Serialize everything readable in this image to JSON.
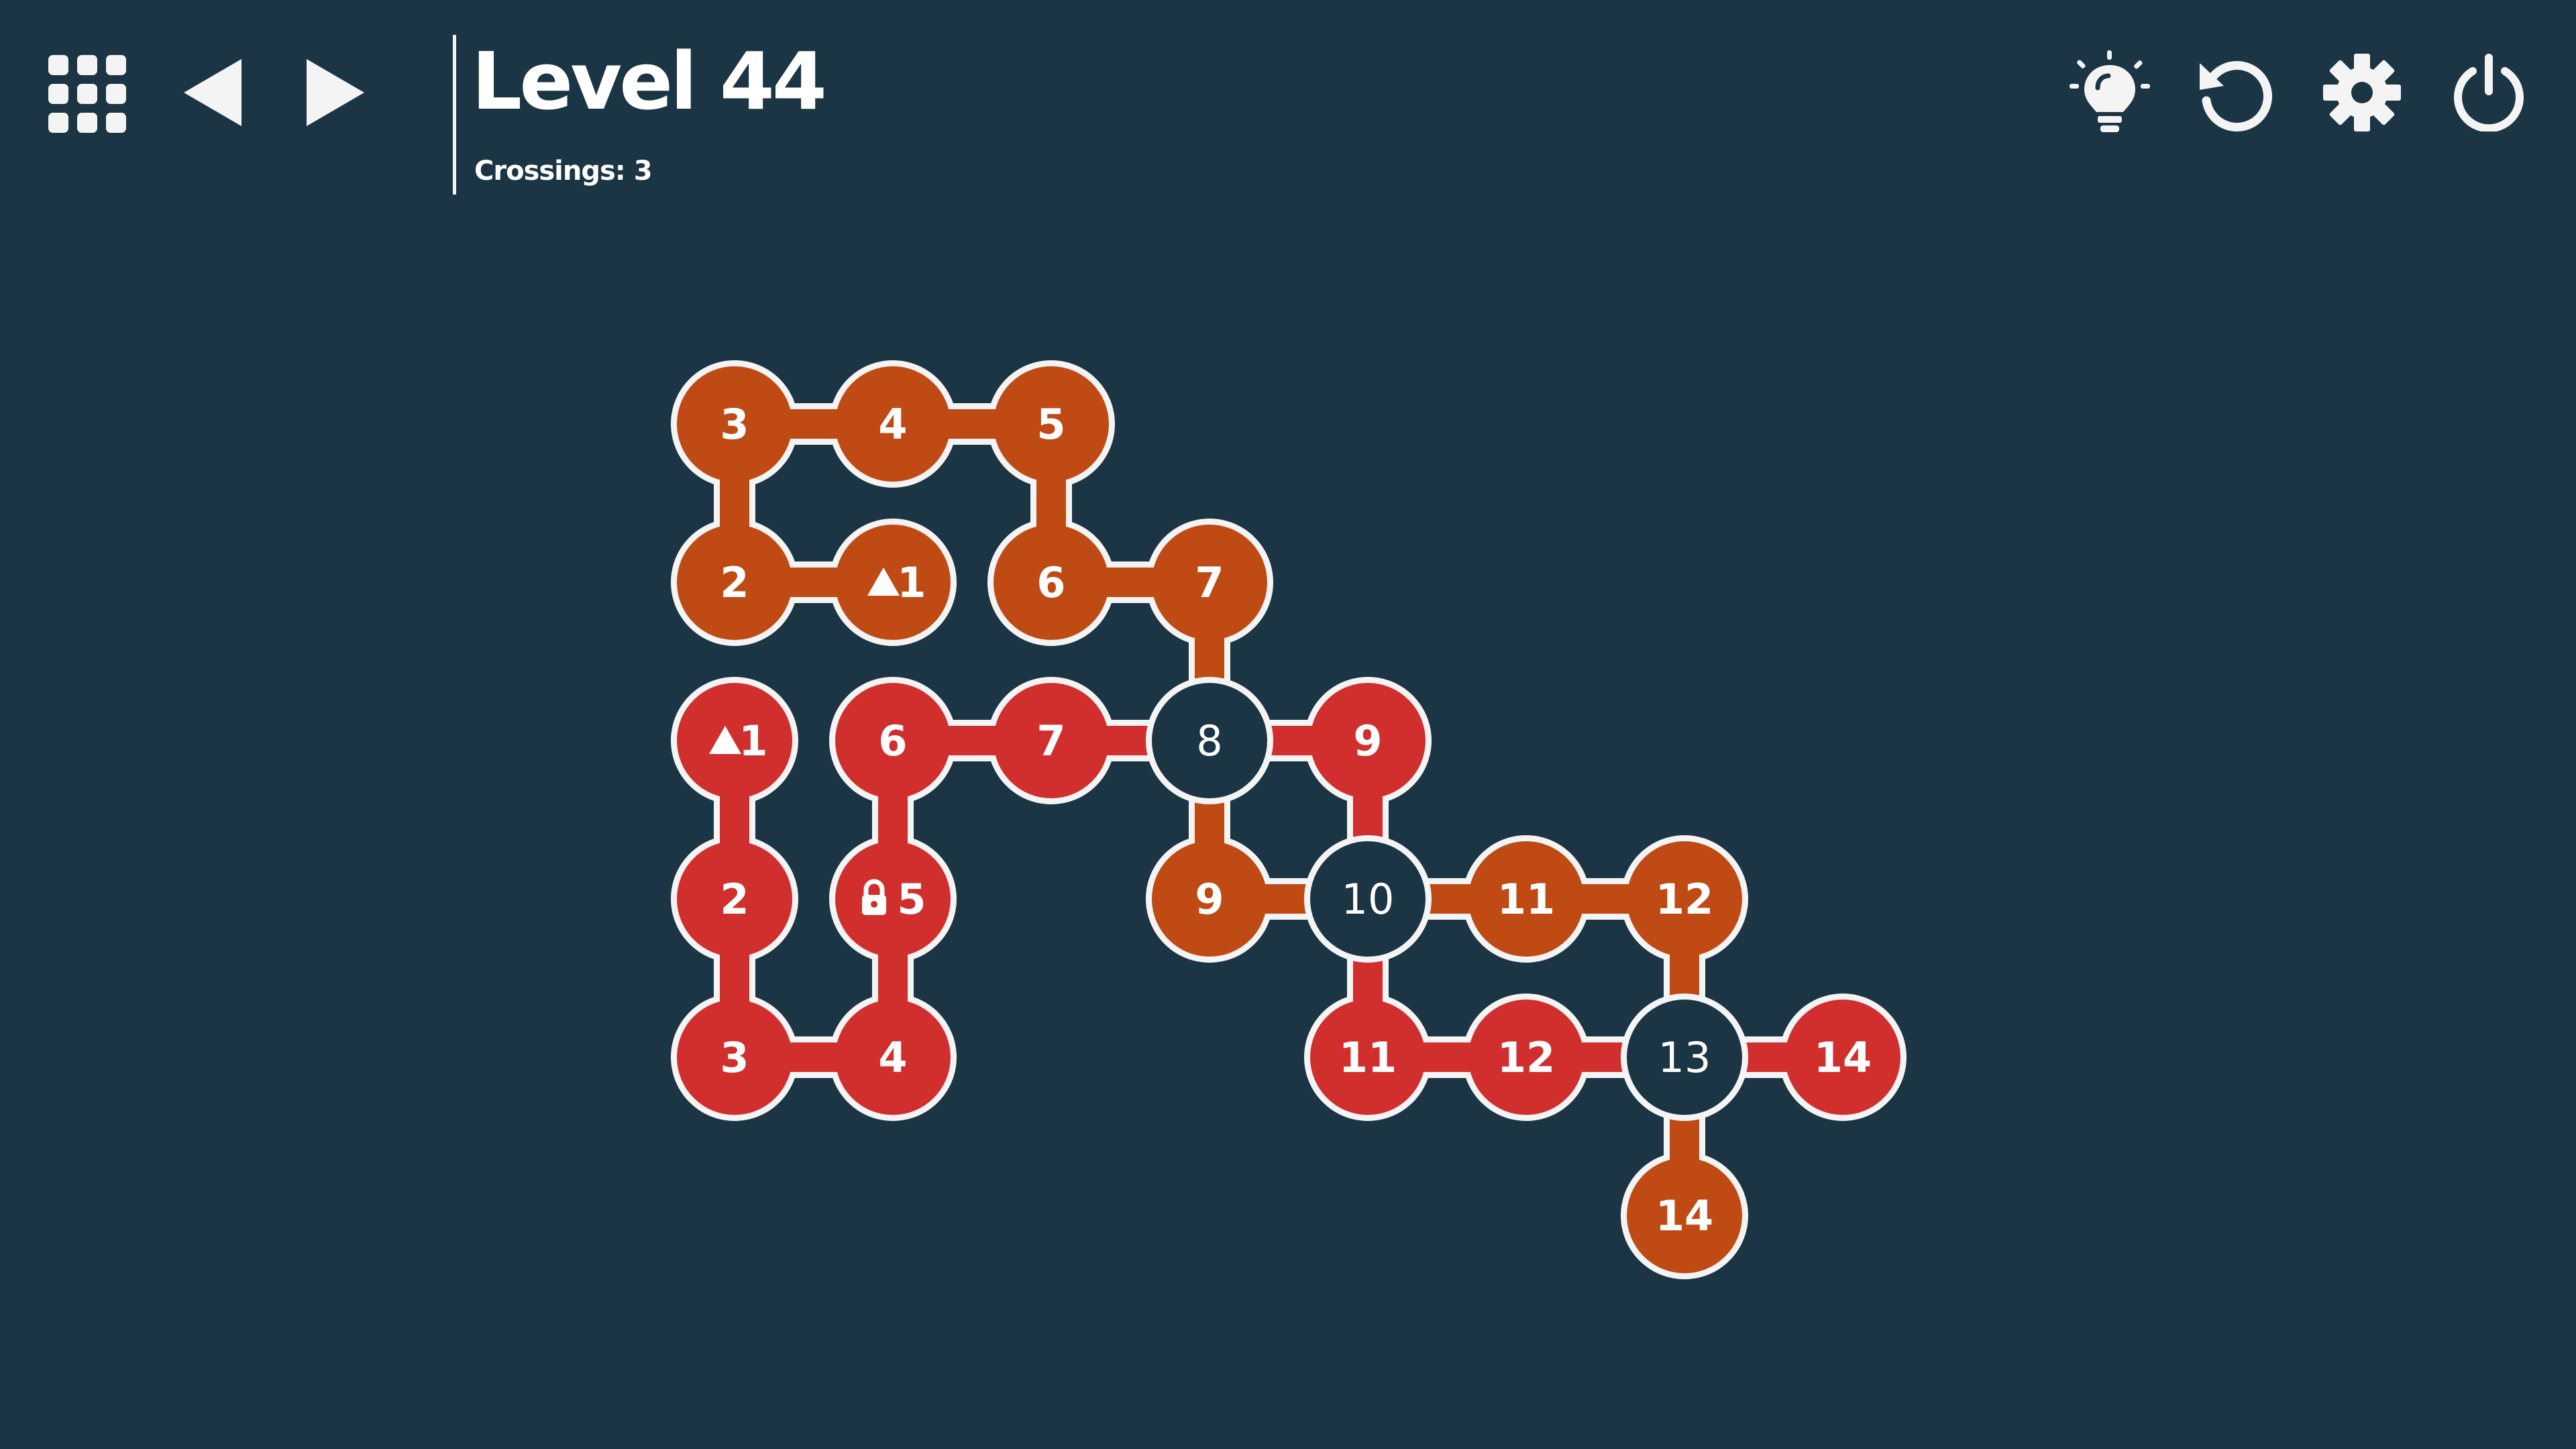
{
  "header": {
    "title": "Level 44",
    "crossings_label": "Crossings: 3"
  },
  "toolbar": {
    "left": [
      {
        "name": "level-menu-button",
        "icon": "grid-icon"
      },
      {
        "name": "previous-level-button",
        "icon": "triangle-left-icon"
      },
      {
        "name": "next-level-button",
        "icon": "triangle-right-icon"
      }
    ],
    "right": [
      {
        "name": "hint-button",
        "icon": "lightbulb-icon"
      },
      {
        "name": "restart-button",
        "icon": "restart-icon"
      },
      {
        "name": "settings-button",
        "icon": "gear-icon"
      },
      {
        "name": "power-button",
        "icon": "power-icon"
      }
    ]
  },
  "colors": {
    "background": "#1b3544",
    "orange": "#bf4a14",
    "red": "#d12e2e",
    "outline": "#f4f4f4"
  },
  "board": {
    "paths": [
      {
        "color": "orange",
        "nodes": [
          {
            "col": 1,
            "row": 1,
            "label": "1",
            "marker": "triangle"
          },
          {
            "col": 0,
            "row": 1,
            "label": "2"
          },
          {
            "col": 0,
            "row": 0,
            "label": "3"
          },
          {
            "col": 1,
            "row": 0,
            "label": "4"
          },
          {
            "col": 2,
            "row": 0,
            "label": "5"
          },
          {
            "col": 2,
            "row": 1,
            "label": "6"
          },
          {
            "col": 3,
            "row": 1,
            "label": "7"
          },
          {
            "col": 3,
            "row": 2,
            "label": "8",
            "crossing": true
          },
          {
            "col": 3,
            "row": 3,
            "label": "9"
          },
          {
            "col": 4,
            "row": 3,
            "label": "10",
            "crossing": true
          },
          {
            "col": 5,
            "row": 3,
            "label": "11"
          },
          {
            "col": 6,
            "row": 3,
            "label": "12"
          },
          {
            "col": 6,
            "row": 4,
            "label": "13",
            "crossing": true
          },
          {
            "col": 6,
            "row": 5,
            "label": "14"
          }
        ]
      },
      {
        "color": "red",
        "nodes": [
          {
            "col": 0,
            "row": 2,
            "label": "1",
            "marker": "triangle"
          },
          {
            "col": 0,
            "row": 3,
            "label": "2"
          },
          {
            "col": 0,
            "row": 4,
            "label": "3"
          },
          {
            "col": 1,
            "row": 4,
            "label": "4"
          },
          {
            "col": 1,
            "row": 3,
            "label": "5",
            "marker": "lock"
          },
          {
            "col": 1,
            "row": 2,
            "label": "6"
          },
          {
            "col": 2,
            "row": 2,
            "label": "7"
          },
          {
            "col": 3,
            "row": 2,
            "label": "8",
            "crossing": true
          },
          {
            "col": 4,
            "row": 2,
            "label": "9"
          },
          {
            "col": 4,
            "row": 3,
            "label": "10",
            "crossing": true
          },
          {
            "col": 4,
            "row": 4,
            "label": "11"
          },
          {
            "col": 5,
            "row": 4,
            "label": "12"
          },
          {
            "col": 6,
            "row": 4,
            "label": "13",
            "crossing": true
          },
          {
            "col": 7,
            "row": 4,
            "label": "14"
          }
        ]
      }
    ]
  }
}
